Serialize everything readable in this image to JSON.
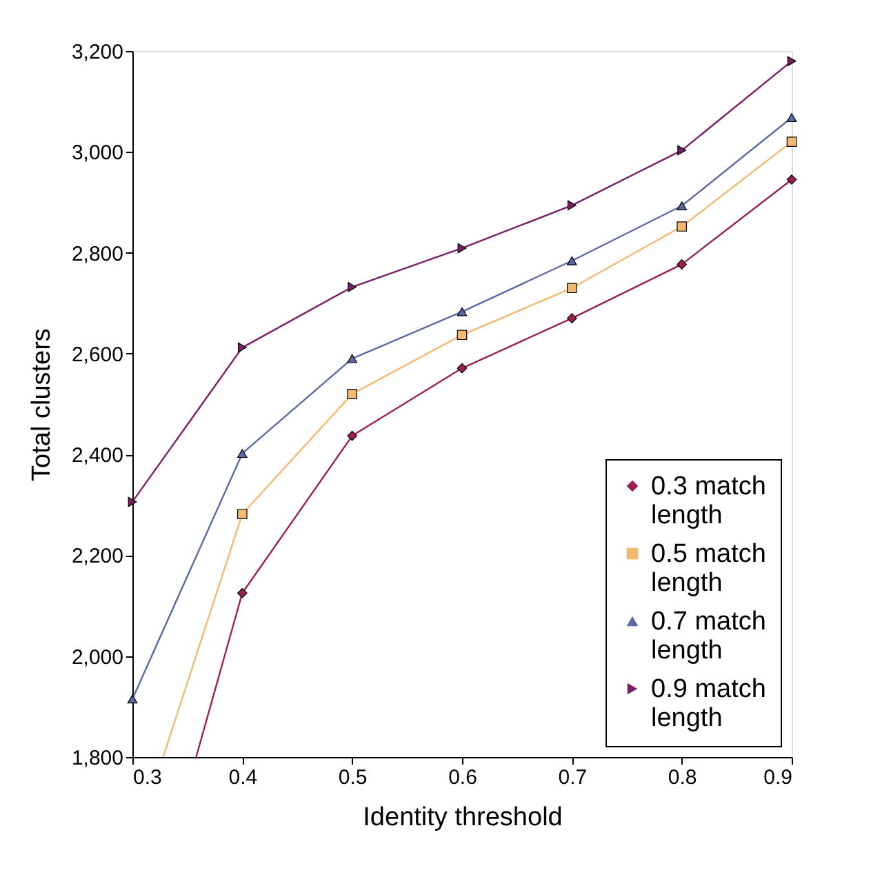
{
  "chart_data": {
    "type": "line",
    "xlabel": "Identity threshold",
    "ylabel": "Total clusters",
    "x": [
      0.3,
      0.4,
      0.5,
      0.6,
      0.7,
      0.8,
      0.9
    ],
    "series": [
      {
        "name": "0.3 match length",
        "color": "#9b2050",
        "marker": "diamond",
        "x": [
          0.358,
          0.4,
          0.5,
          0.6,
          0.7,
          0.8,
          0.9
        ],
        "values": [
          1800,
          2125,
          2437,
          2571,
          2670,
          2777,
          2945
        ]
      },
      {
        "name": "0.5 match length",
        "color": "#f5b870",
        "marker": "square",
        "x": [
          0.328,
          0.4,
          0.5,
          0.6,
          0.7,
          0.8,
          0.9
        ],
        "values": [
          1800,
          2282,
          2520,
          2637,
          2730,
          2852,
          3020
        ]
      },
      {
        "name": "0.7 match length",
        "color": "#5a6aa8",
        "marker": "triangle",
        "values": [
          1915,
          2402,
          2590,
          2683,
          2784,
          2893,
          3068
        ]
      },
      {
        "name": "0.9 match length",
        "color": "#7a1f66",
        "marker": "triangle-right",
        "values": [
          2306,
          2612,
          2732,
          2809,
          2894,
          3003,
          3180
        ]
      }
    ],
    "xlim": [
      0.3,
      0.9
    ],
    "xticks": [
      0.3,
      0.4,
      0.5,
      0.6,
      0.7,
      0.8,
      0.9
    ],
    "ylim": [
      1800,
      3200
    ],
    "yticks": [
      {
        "value": 1800,
        "label": "1,800"
      },
      {
        "value": 2000,
        "label": "2,000"
      },
      {
        "value": 2200,
        "label": "2,200"
      },
      {
        "value": 2400,
        "label": "2,400"
      },
      {
        "value": 2600,
        "label": "2,600"
      },
      {
        "value": 2800,
        "label": "2,800"
      },
      {
        "value": 3000,
        "label": "3,000"
      },
      {
        "value": 3200,
        "label": "3,200"
      }
    ],
    "grid": false,
    "legend": "bottom right",
    "line_style": "solid"
  }
}
